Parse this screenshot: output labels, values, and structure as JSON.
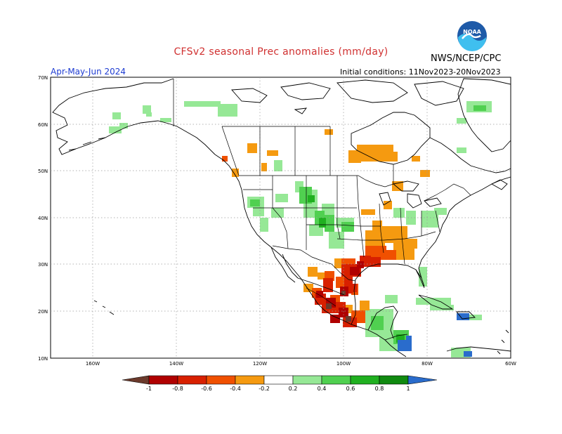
{
  "title": "CFSv2 seasonal Prec anomalies (mm/day)",
  "agency": "NWS/NCEP/CPC",
  "period": "Apr-May-Jun 2024",
  "initial_conditions": "Initial conditions: 11Nov2023-20Nov2023",
  "logo": {
    "text": "NOAA",
    "name": "noaa-logo-icon"
  },
  "lat_labels": [
    "70N",
    "60N",
    "50N",
    "40N",
    "30N",
    "20N",
    "10N"
  ],
  "lon_labels": [
    "160W",
    "140W",
    "120W",
    "100W",
    "80W",
    "60W"
  ],
  "colorbar": {
    "labels": [
      "-1",
      "-0.8",
      "-0.6",
      "-0.4",
      "-0.2",
      "0.2",
      "0.4",
      "0.6",
      "0.8",
      "1"
    ],
    "colors": [
      "#6b3a2c",
      "#b00000",
      "#d82000",
      "#f05000",
      "#f59a10",
      "#ffffff",
      "#96e896",
      "#50d050",
      "#20b020",
      "#108a10",
      "#2a6ccc"
    ]
  },
  "colors": {
    "title": "#d03030",
    "period": "#1e3cd2",
    "background": "#ffffff"
  }
}
